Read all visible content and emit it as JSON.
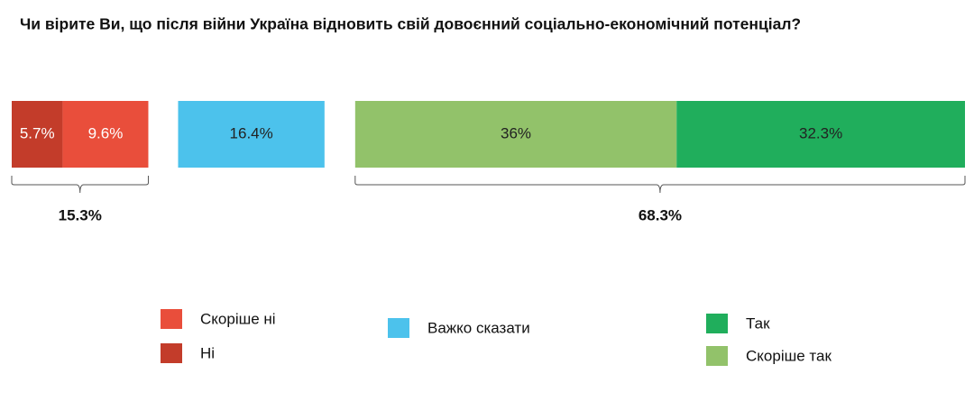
{
  "chart_data": {
    "type": "stacked-bar",
    "title": "Чи вірите Ви, що після війни Україна відновить свій довоєнний соціально-економічний потенціал?",
    "series": [
      {
        "name": "Ні",
        "color": "#c33c2a",
        "values": [
          5.7
        ],
        "value_labels": [
          "5.7%"
        ]
      },
      {
        "name": "Скоріше ні",
        "color": "#e94e3b",
        "values": [
          9.6
        ],
        "value_labels": [
          "9.6%"
        ]
      },
      {
        "name": "Важко сказати",
        "color": "#4cc2ec",
        "values": [
          16.4
        ],
        "value_labels": [
          "16.4%"
        ]
      },
      {
        "name": "Скоріше так",
        "color": "#92c26a",
        "values": [
          36
        ],
        "value_labels": [
          "36%"
        ]
      },
      {
        "name": "Так",
        "color": "#20ae5c",
        "values": [
          32.3
        ],
        "value_labels": [
          "32.3%"
        ]
      }
    ],
    "totals": [
      15.3,
      68.3
    ],
    "total_labels": [
      "15.3%",
      "68.3%"
    ]
  }
}
